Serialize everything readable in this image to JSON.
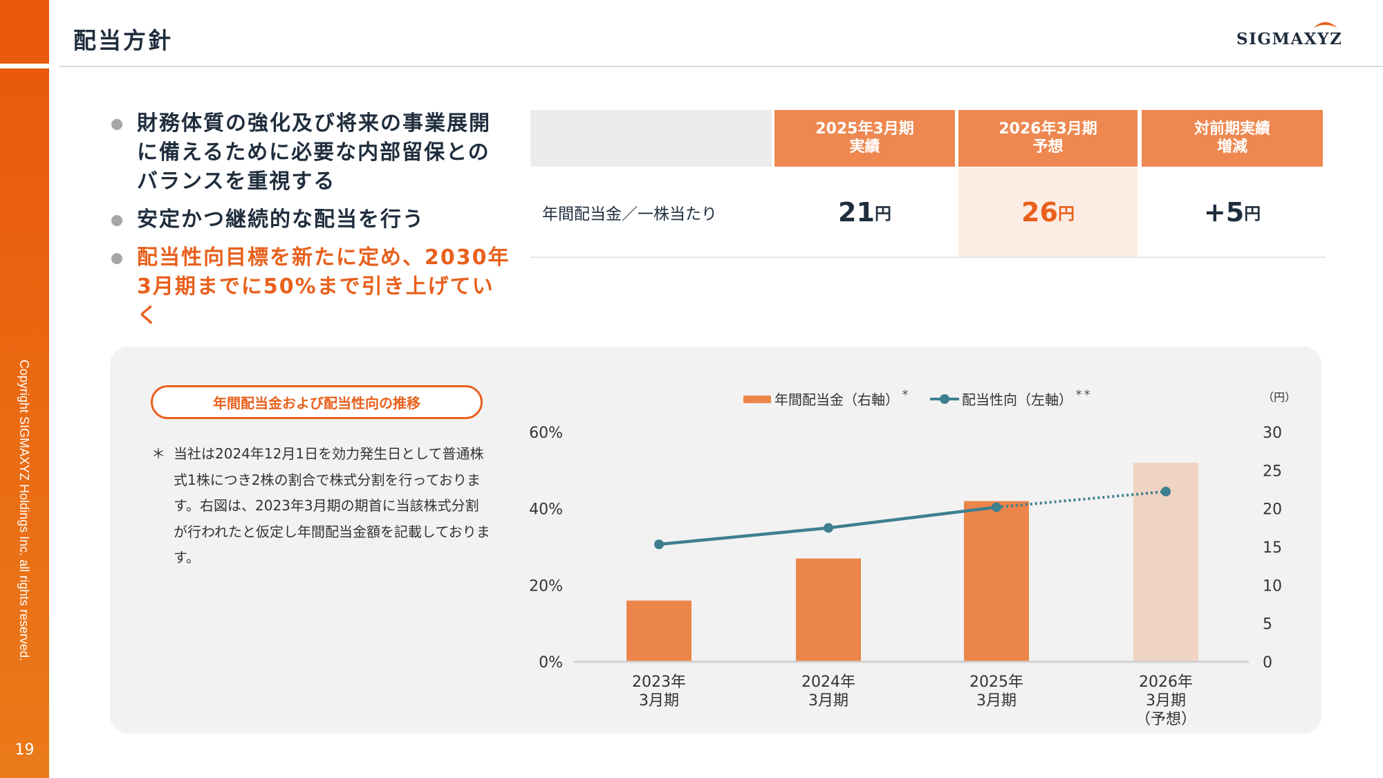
{
  "header": {
    "title": "配当方針",
    "logo": "SIGMAXYZ"
  },
  "sidebar": {
    "copyright": "Copyright SIGMAXYZ Holdings Inc. all rights reserved.",
    "page_number": "19"
  },
  "bullets": [
    {
      "text": "財務体質の強化及び将来の事業展開に備えるために必要な内部留保とのバランスを重視する"
    },
    {
      "text": "安定かつ継続的な配当を行う"
    },
    {
      "text": "配当性向目標を新たに定め、2030年3月期までに50%まで引き上げていく"
    }
  ],
  "table": {
    "headers": [
      {
        "line1": "2025年3月期",
        "line2": "実績"
      },
      {
        "line1": "2026年3月期",
        "line2": "予想"
      },
      {
        "line1": "対前期実績",
        "line2": "増減"
      }
    ],
    "row_label": "年間配当金／一株当たり",
    "values": [
      {
        "num": "21",
        "unit": "円"
      },
      {
        "num": "26",
        "unit": "円"
      },
      {
        "num": "+5",
        "unit": "円"
      }
    ]
  },
  "panel": {
    "pill": "年間配当金および配当性向の推移",
    "note_mark": "＊",
    "note": "当社は2024年12月1日を効力発生日として普通株式1株につき2株の割合で株式分割を行っております。右図は、2023年3月期の期首に当該株式分割が行われたと仮定し年間配当金額を記載しております。"
  },
  "colors": {
    "bar": "#EC8549",
    "bar_forecast": "#EFD3C3",
    "line": "#3E7F8F",
    "accent": "#E8601C"
  },
  "chart_data": {
    "type": "bar",
    "categories": [
      [
        "2023年",
        "3月期"
      ],
      [
        "2024年",
        "3月期"
      ],
      [
        "2025年",
        "3月期"
      ],
      [
        "2026年",
        "3月期",
        "（予想）"
      ]
    ],
    "series": [
      {
        "name": "年間配当金（右軸）",
        "superscript": "＊",
        "type": "bar",
        "axis": "right",
        "values": [
          8,
          13.5,
          21,
          26
        ],
        "forecast_index": 3
      },
      {
        "name": "配当性向（左軸）",
        "superscript": "＊＊",
        "type": "line",
        "axis": "left",
        "values": [
          30.7,
          35,
          40.4,
          44.5
        ],
        "dotted_from_index": 2
      }
    ],
    "left_axis": {
      "ticks": [
        "0%",
        "20%",
        "40%",
        "60%"
      ],
      "range": [
        0,
        60
      ]
    },
    "right_axis": {
      "unit": "（円）",
      "ticks": [
        "0",
        "5",
        "10",
        "15",
        "20",
        "25",
        "30"
      ],
      "range": [
        0,
        30
      ]
    },
    "legend": "top-center"
  }
}
